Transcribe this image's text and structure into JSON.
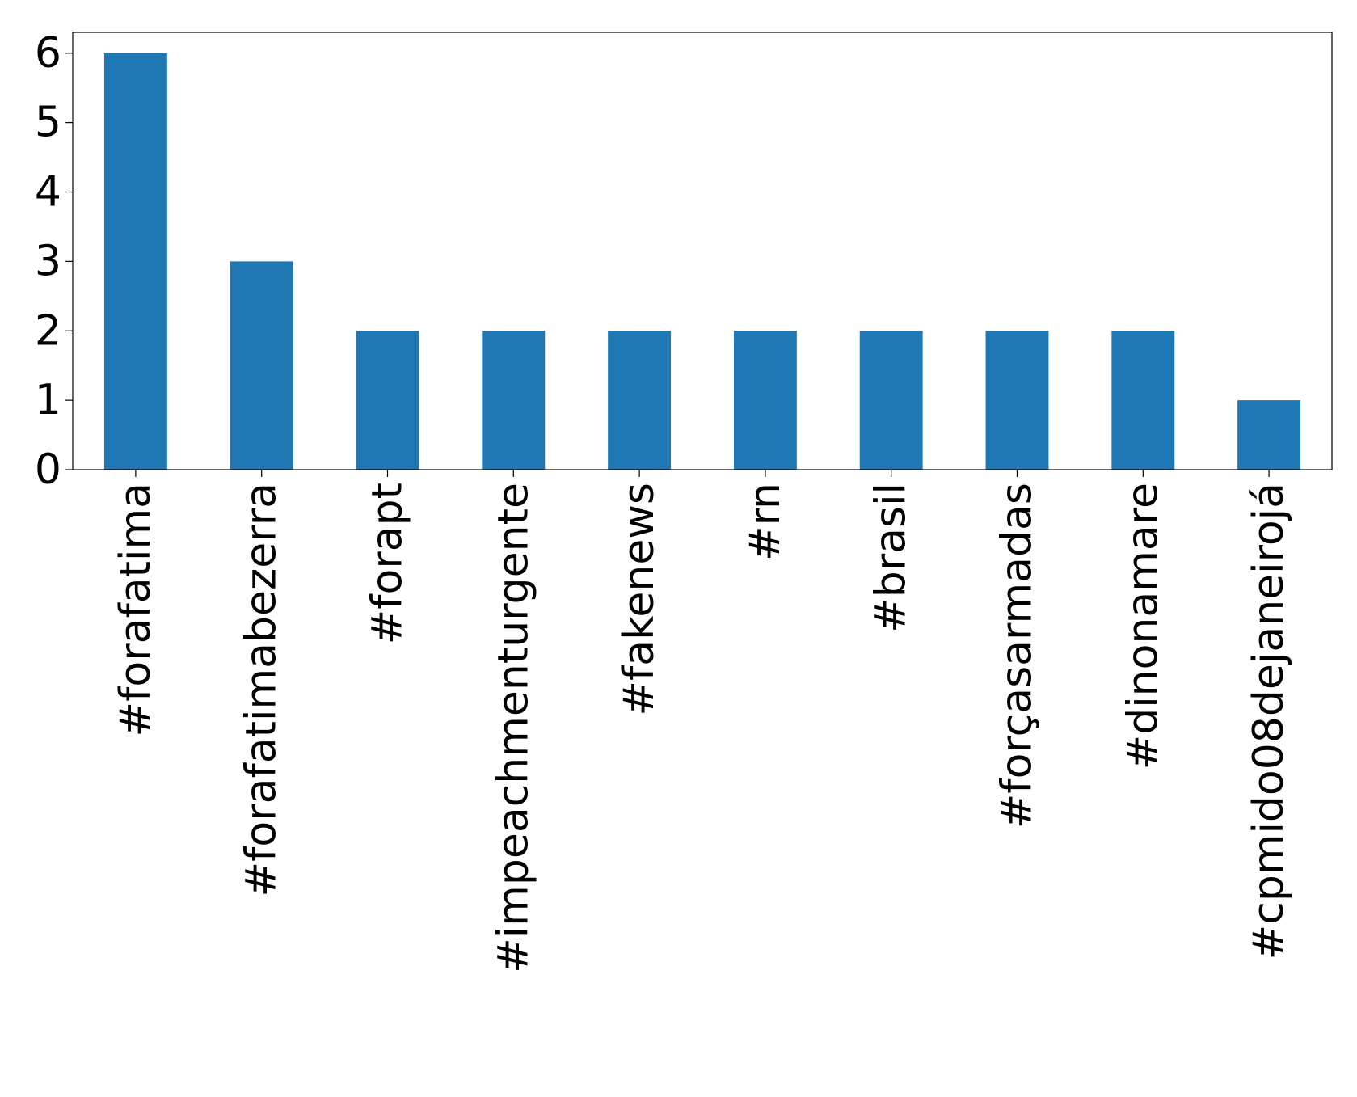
{
  "chart_data": {
    "type": "bar",
    "categories": [
      "#forafatima",
      "#forafatimabezerra",
      "#forapt",
      "#impeachmenturgente",
      "#fakenews",
      "#rn",
      "#brasil",
      "#forçasarmadas",
      "#dinonamare",
      "#cpmido08dejaneirojá"
    ],
    "values": [
      6,
      3,
      2,
      2,
      2,
      2,
      2,
      2,
      2,
      1
    ],
    "color": "#1f77b4",
    "ylim": [
      0,
      6.3
    ],
    "yticks": [
      0,
      1,
      2,
      3,
      4,
      5,
      6
    ],
    "grid": false
  }
}
